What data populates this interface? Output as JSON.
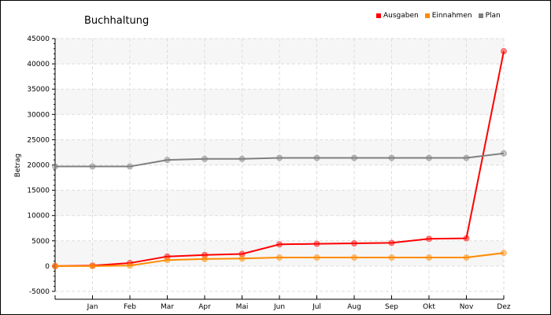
{
  "chart_data": {
    "type": "line",
    "title": "Buchhaltung",
    "xlabel": "",
    "ylabel": "Betrag",
    "categories": [
      "",
      "Jan",
      "Feb",
      "Mar",
      "Apr",
      "Mai",
      "Jun",
      "Jul",
      "Aug",
      "Sep",
      "Okt",
      "Nov",
      "Dez"
    ],
    "ylim": [
      -5000,
      45000
    ],
    "yticks": [
      -5000,
      0,
      5000,
      10000,
      15000,
      20000,
      25000,
      30000,
      35000,
      40000,
      45000
    ],
    "grid": true,
    "legend_position": "top-right",
    "series": [
      {
        "name": "Ausgaben",
        "color": "#ff0000",
        "values": [
          0,
          100,
          600,
          1900,
          2200,
          2400,
          4300,
          4400,
          4500,
          4600,
          5400,
          5500,
          42500
        ]
      },
      {
        "name": "Einnahmen",
        "color": "#ff8c00",
        "values": [
          0,
          0,
          100,
          1200,
          1400,
          1500,
          1700,
          1700,
          1700,
          1700,
          1700,
          1700,
          2600
        ]
      },
      {
        "name": "Plan",
        "color": "#808080",
        "values": [
          19700,
          19700,
          19700,
          21000,
          21200,
          21200,
          21400,
          21400,
          21400,
          21400,
          21400,
          21400,
          22300
        ]
      }
    ]
  }
}
